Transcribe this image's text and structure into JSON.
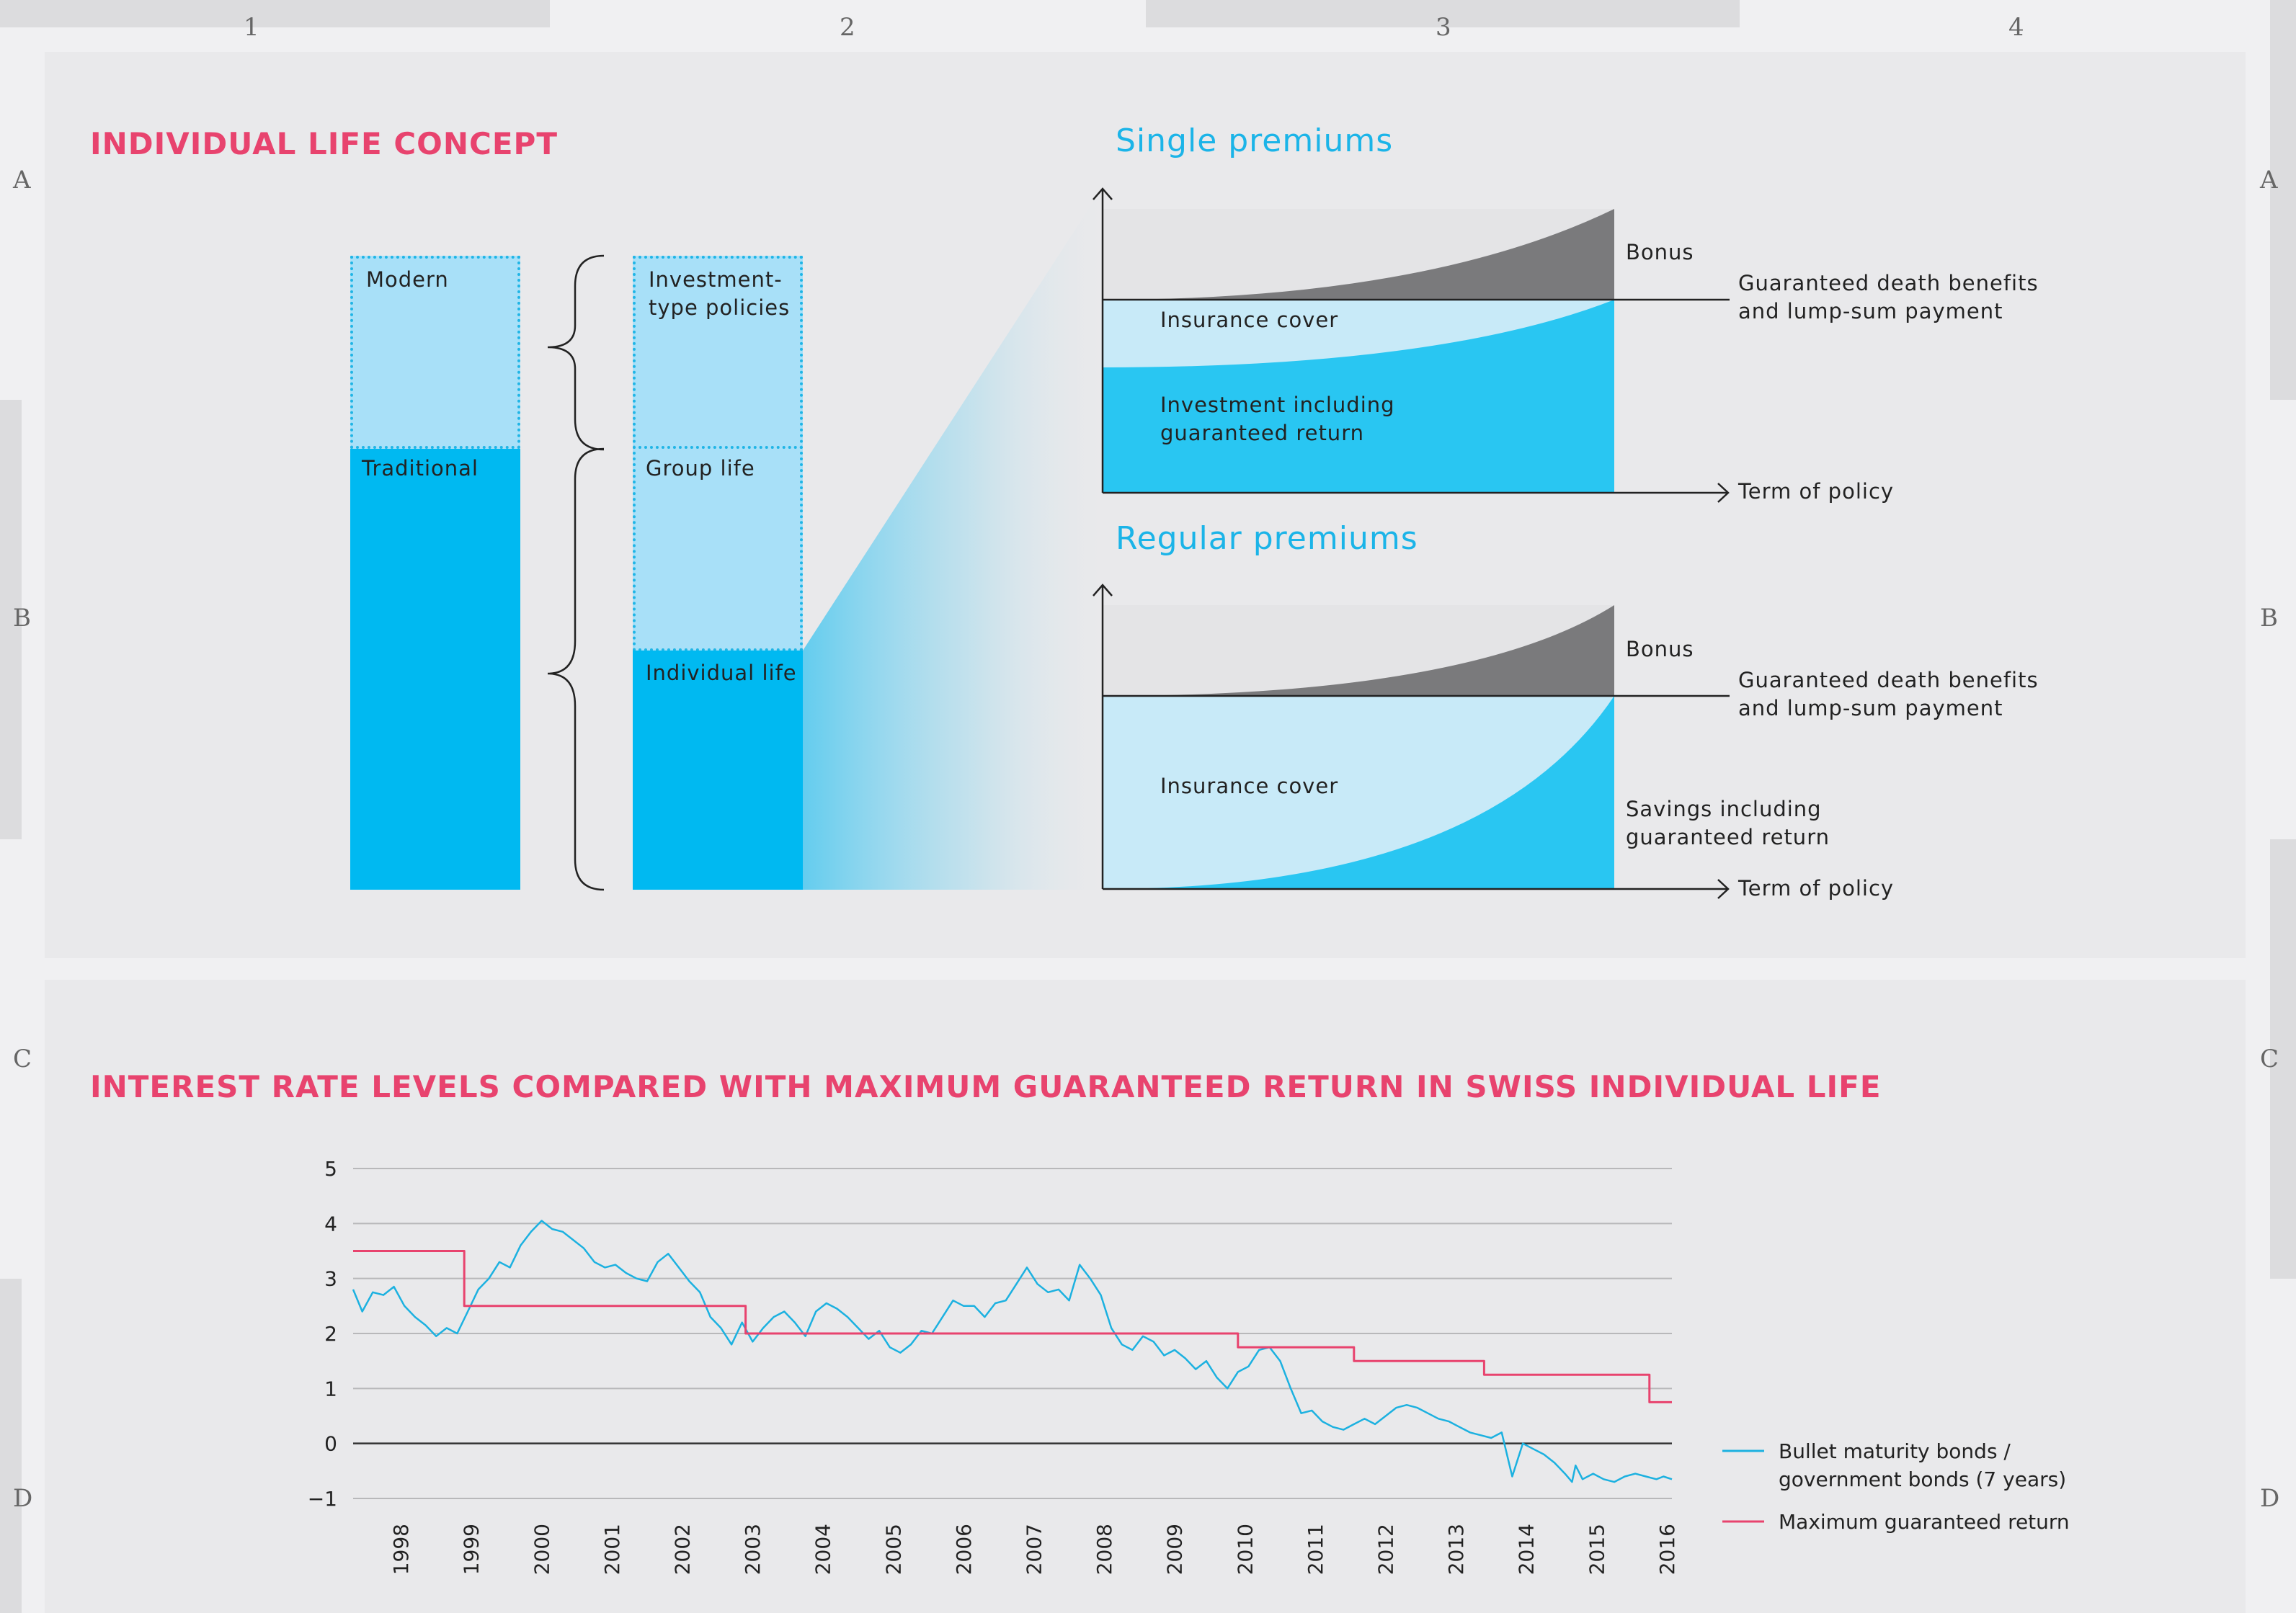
{
  "grid": {
    "columns": [
      "1",
      "2",
      "3",
      "4"
    ],
    "rows": [
      "A",
      "B",
      "C",
      "D"
    ]
  },
  "concept": {
    "title": "INDIVIDUAL LIFE CONCEPT",
    "bar1": {
      "modern": "Modern",
      "traditional": "Traditional"
    },
    "bar2": {
      "investment_line1": "Investment-",
      "investment_line2": "type policies",
      "group_life": "Group life",
      "individual_life": "Individual life"
    },
    "single": {
      "title": "Single premiums",
      "bonus": "Bonus",
      "guaranteed_line1": "Guaranteed death benefits",
      "guaranteed_line2": "and lump-sum payment",
      "insurance_cover": "Insurance cover",
      "investment_line1": "Investment including",
      "investment_line2": "guaranteed return",
      "term": "Term of policy"
    },
    "regular": {
      "title": "Regular premiums",
      "bonus": "Bonus",
      "guaranteed_line1": "Guaranteed death benefits",
      "guaranteed_line2": "and lump-sum payment",
      "insurance_cover": "Insurance cover",
      "savings_line1": "Savings including",
      "savings_line2": "guaranteed return",
      "term": "Term of policy"
    },
    "colors": {
      "light_blue": "#a8e0f8",
      "blue": "#00b9f1",
      "cyan": "#29c6f2",
      "pale_blue": "#c8eaf8",
      "grey": "#7a7a7c",
      "light_grey": "#e4e4e6",
      "dotted": "#20b5e6"
    }
  },
  "chart_data": {
    "type": "line",
    "title": "INTEREST RATE LEVELS COMPARED WITH MAXIMUM GUARANTEED RETURN IN SWISS INDIVIDUAL LIFE",
    "xlabel": "",
    "ylabel": "",
    "ylim": [
      -1,
      5
    ],
    "xlim": [
      1997.67,
      2016.42
    ],
    "yticks": [
      "5",
      "4",
      "3",
      "2",
      "1",
      "0",
      "−1"
    ],
    "ytick_values": [
      5,
      4,
      3,
      2,
      1,
      0,
      -1
    ],
    "xticks": [
      "1998",
      "1999",
      "2000",
      "2001",
      "2002",
      "2003",
      "2004",
      "2005",
      "2006",
      "2007",
      "2008",
      "2009",
      "2010",
      "2011",
      "2012",
      "2013",
      "2014",
      "2015",
      "2016"
    ],
    "legend_position": "bottom-right",
    "series": [
      {
        "name": "Bullet maturity bonds / government bonds (7 years)",
        "legend_line1": "Bullet maturity bonds /",
        "legend_line2": "government bonds (7 years)",
        "color": "#1cb1e0",
        "x": [
          1997.67,
          1997.8,
          1997.95,
          1998.1,
          1998.25,
          1998.4,
          1998.55,
          1998.7,
          1998.85,
          1999.0,
          1999.15,
          1999.3,
          1999.45,
          1999.6,
          1999.75,
          1999.9,
          2000.05,
          2000.2,
          2000.35,
          2000.5,
          2000.65,
          2000.8,
          2000.95,
          2001.1,
          2001.25,
          2001.4,
          2001.55,
          2001.7,
          2001.85,
          2002.0,
          2002.15,
          2002.3,
          2002.45,
          2002.6,
          2002.75,
          2002.9,
          2003.05,
          2003.2,
          2003.35,
          2003.5,
          2003.65,
          2003.8,
          2003.95,
          2004.1,
          2004.25,
          2004.4,
          2004.55,
          2004.7,
          2004.85,
          2005.0,
          2005.15,
          2005.3,
          2005.45,
          2005.6,
          2005.75,
          2005.9,
          2006.05,
          2006.2,
          2006.35,
          2006.5,
          2006.65,
          2006.8,
          2006.95,
          2007.1,
          2007.25,
          2007.4,
          2007.55,
          2007.7,
          2007.85,
          2008.0,
          2008.15,
          2008.3,
          2008.45,
          2008.6,
          2008.75,
          2008.9,
          2009.05,
          2009.2,
          2009.35,
          2009.5,
          2009.65,
          2009.8,
          2009.95,
          2010.1,
          2010.25,
          2010.4,
          2010.55,
          2010.7,
          2010.85,
          2011.0,
          2011.15,
          2011.3,
          2011.45,
          2011.6,
          2011.75,
          2011.9,
          2012.05,
          2012.2,
          2012.35,
          2012.5,
          2012.65,
          2012.8,
          2012.95,
          2013.1,
          2013.25,
          2013.4,
          2013.55,
          2013.7,
          2013.85,
          2014.0,
          2014.15,
          2014.3,
          2014.45,
          2014.6,
          2014.75,
          2014.9,
          2015.0,
          2015.05,
          2015.15,
          2015.3,
          2015.45,
          2015.6,
          2015.75,
          2015.9,
          2016.05,
          2016.2,
          2016.3,
          2016.42
        ],
        "values": [
          2.8,
          2.4,
          2.75,
          2.7,
          2.85,
          2.5,
          2.3,
          2.15,
          1.95,
          2.1,
          2.0,
          2.4,
          2.8,
          3.0,
          3.3,
          3.2,
          3.6,
          3.85,
          4.05,
          3.9,
          3.85,
          3.7,
          3.55,
          3.3,
          3.2,
          3.25,
          3.1,
          3.0,
          2.95,
          3.3,
          3.45,
          3.2,
          2.95,
          2.75,
          2.3,
          2.1,
          1.8,
          2.2,
          1.85,
          2.1,
          2.3,
          2.4,
          2.2,
          1.95,
          2.4,
          2.55,
          2.45,
          2.3,
          2.1,
          1.9,
          2.05,
          1.75,
          1.65,
          1.8,
          2.05,
          2.0,
          2.3,
          2.6,
          2.5,
          2.5,
          2.3,
          2.55,
          2.6,
          2.9,
          3.2,
          2.9,
          2.75,
          2.8,
          2.6,
          3.25,
          3.0,
          2.7,
          2.1,
          1.8,
          1.7,
          1.95,
          1.85,
          1.6,
          1.7,
          1.55,
          1.35,
          1.5,
          1.2,
          1.0,
          1.3,
          1.4,
          1.7,
          1.75,
          1.5,
          1.0,
          0.55,
          0.6,
          0.4,
          0.3,
          0.25,
          0.35,
          0.45,
          0.35,
          0.5,
          0.65,
          0.7,
          0.65,
          0.55,
          0.45,
          0.4,
          0.3,
          0.2,
          0.15,
          0.1,
          0.2,
          -0.6,
          0.0,
          -0.1,
          -0.2,
          -0.35,
          -0.55,
          -0.7,
          -0.4,
          -0.65,
          -0.55,
          -0.65,
          -0.7,
          -0.6,
          -0.55,
          -0.6,
          -0.65,
          -0.6,
          -0.65
        ]
      },
      {
        "name": "Maximum guaranteed return",
        "legend_line1": "Maximum guaranteed return",
        "color": "#e8436e",
        "x": [
          1997.67,
          1999.25,
          1999.25,
          2003.25,
          2003.25,
          2010.25,
          2010.25,
          2011.9,
          2011.9,
          2013.75,
          2013.75,
          2016.1,
          2016.1,
          2016.42
        ],
        "values": [
          3.5,
          3.5,
          2.5,
          2.5,
          2.0,
          2.0,
          1.75,
          1.75,
          1.5,
          1.5,
          1.25,
          1.25,
          0.75,
          0.75
        ]
      }
    ]
  }
}
